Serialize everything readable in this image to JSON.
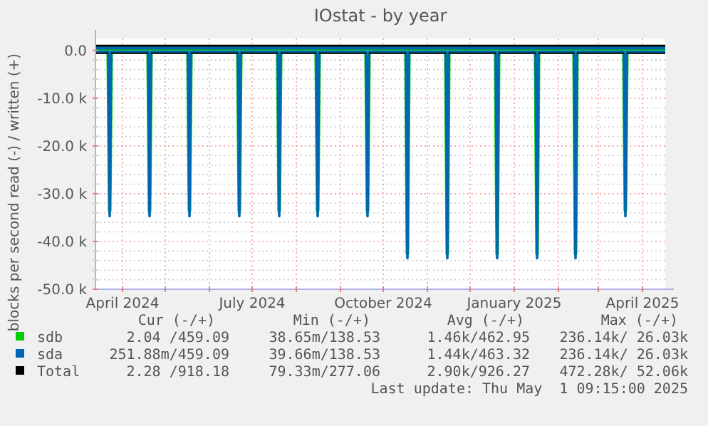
{
  "chart_data": {
    "type": "line",
    "title": "IOstat - by year",
    "ylabel": "blocks per second read (-) / written (+)",
    "x": [
      "2024-03-13",
      "2024-03-22",
      "2024-03-23",
      "2024-03-24",
      "2024-04-19",
      "2024-04-20",
      "2024-04-21",
      "2024-05-17",
      "2024-05-18",
      "2024-05-19",
      "2024-06-21",
      "2024-06-22",
      "2024-06-23",
      "2024-07-19",
      "2024-07-20",
      "2024-07-21",
      "2024-08-15",
      "2024-08-16",
      "2024-08-17",
      "2024-09-19",
      "2024-09-20",
      "2024-09-21",
      "2024-10-17",
      "2024-10-18",
      "2024-10-19",
      "2024-11-14",
      "2024-11-15",
      "2024-11-16",
      "2024-12-19",
      "2024-12-20",
      "2024-12-21",
      "2025-01-16",
      "2025-01-17",
      "2025-01-18",
      "2025-02-12",
      "2025-02-13",
      "2025-02-14",
      "2025-03-19",
      "2025-03-20",
      "2025-03-21",
      "2025-04-17"
    ],
    "series": [
      {
        "name": "sdb",
        "color": "#00cc00",
        "values": [
          500,
          500,
          500,
          500,
          500,
          500,
          500,
          500,
          500,
          500,
          500,
          500,
          500,
          500,
          500,
          500,
          500,
          500,
          500,
          500,
          500,
          500,
          500,
          500,
          500,
          500,
          500,
          500,
          500,
          500,
          500,
          500,
          500,
          500,
          500,
          500,
          500,
          500,
          500,
          500,
          500
        ]
      },
      {
        "color": "#00cc00",
        "values": [
          -300,
          -300,
          -33500,
          -300,
          -300,
          -33500,
          -300,
          -300,
          -33500,
          -300,
          -300,
          -33500,
          -300,
          -300,
          -33500,
          -300,
          -300,
          -33500,
          -300,
          -300,
          -33500,
          -300,
          -300,
          -42500,
          -300,
          -300,
          -42500,
          -300,
          -300,
          -42500,
          -300,
          -300,
          -42500,
          -300,
          -300,
          -42500,
          -300,
          -300,
          -33500,
          -300,
          -300
        ]
      },
      {
        "name": "sda",
        "color": "#0066b3",
        "values": [
          500,
          500,
          500,
          500,
          500,
          500,
          500,
          500,
          500,
          500,
          500,
          500,
          500,
          500,
          500,
          500,
          500,
          500,
          500,
          500,
          500,
          500,
          500,
          500,
          500,
          500,
          500,
          500,
          500,
          500,
          500,
          500,
          500,
          500,
          500,
          500,
          500,
          500,
          500,
          500,
          500
        ]
      },
      {
        "color": "#0066b3",
        "values": [
          -300,
          -300,
          -34700,
          -300,
          -300,
          -34700,
          -300,
          -300,
          -34700,
          -300,
          -300,
          -34700,
          -300,
          -300,
          -34700,
          -300,
          -300,
          -34700,
          -300,
          -300,
          -34700,
          -300,
          -300,
          -43500,
          -300,
          -300,
          -43500,
          -300,
          -300,
          -43500,
          -300,
          -300,
          -43500,
          -300,
          -300,
          -43500,
          -300,
          -300,
          -34700,
          -300,
          -300
        ]
      },
      {
        "name": "Total",
        "color": "#000000",
        "values": [
          1000,
          1000,
          1000,
          1000,
          1000,
          1000,
          1000,
          1000,
          1000,
          1000,
          1000,
          1000,
          1000,
          1000,
          1000,
          1000,
          1000,
          1000,
          1000,
          1000,
          1000,
          1000,
          1000,
          1000,
          1000,
          1000,
          1000,
          1000,
          1000,
          1000,
          1000,
          1000,
          1000,
          1000,
          1000,
          1000,
          1000,
          1000,
          1000,
          1000,
          1000
        ]
      },
      {
        "color": "#000000",
        "values": [
          -600,
          -600,
          null,
          -600,
          -600,
          null,
          -600,
          -600,
          null,
          -600,
          -600,
          null,
          -600,
          -600,
          null,
          -600,
          -600,
          null,
          -600,
          -600,
          null,
          -600,
          -600,
          null,
          -600,
          -600,
          null,
          -600,
          -600,
          null,
          -600,
          -600,
          null,
          -600,
          -600,
          null,
          -600,
          -600,
          null,
          -600,
          -600
        ]
      }
    ],
    "xlim": [
      "2024-03-13",
      "2025-04-17"
    ],
    "xticks": [
      {
        "value": "2024-04-01",
        "label": "April 2024"
      },
      {
        "value": "2024-05-01",
        "label": null
      },
      {
        "value": "2024-06-01",
        "label": null
      },
      {
        "value": "2024-07-01",
        "label": "July 2024"
      },
      {
        "value": "2024-08-01",
        "label": null
      },
      {
        "value": "2024-09-01",
        "label": null
      },
      {
        "value": "2024-10-01",
        "label": "October 2024"
      },
      {
        "value": "2024-11-01",
        "label": null
      },
      {
        "value": "2024-12-01",
        "label": null
      },
      {
        "value": "2025-01-01",
        "label": "January 2025"
      },
      {
        "value": "2025-02-01",
        "label": null
      },
      {
        "value": "2025-03-01",
        "label": null
      },
      {
        "value": "2025-04-01",
        "label": "April 2025"
      }
    ],
    "ylim": [
      -50000,
      2500
    ],
    "yticks": [
      {
        "value": 0,
        "label": "0.0"
      },
      {
        "value": -2000,
        "label": null
      },
      {
        "value": -4000,
        "label": null
      },
      {
        "value": -6000,
        "label": null
      },
      {
        "value": -8000,
        "label": null
      },
      {
        "value": -10000,
        "label": "-10.0 k"
      },
      {
        "value": -12000,
        "label": null
      },
      {
        "value": -14000,
        "label": null
      },
      {
        "value": -16000,
        "label": null
      },
      {
        "value": -18000,
        "label": null
      },
      {
        "value": -20000,
        "label": "-20.0 k"
      },
      {
        "value": -22000,
        "label": null
      },
      {
        "value": -24000,
        "label": null
      },
      {
        "value": -26000,
        "label": null
      },
      {
        "value": -28000,
        "label": null
      },
      {
        "value": -30000,
        "label": "-30.0 k"
      },
      {
        "value": -32000,
        "label": null
      },
      {
        "value": -34000,
        "label": null
      },
      {
        "value": -36000,
        "label": null
      },
      {
        "value": -38000,
        "label": null
      },
      {
        "value": -40000,
        "label": "-40.0 k"
      },
      {
        "value": -42000,
        "label": null
      },
      {
        "value": -44000,
        "label": null
      },
      {
        "value": -46000,
        "label": null
      },
      {
        "value": -48000,
        "label": null
      },
      {
        "value": -50000,
        "label": "-50.0 k"
      }
    ],
    "grid": true,
    "legend": "bottom",
    "marker": "none",
    "line_style": "solid",
    "annotations": [
      "Cur (-/+)",
      "Min (-/+)",
      "Avg (-/+)",
      "Max (-/+)",
      "2.04 /459.09",
      "38.65m/138.53",
      "1.46k/462.95",
      "236.14k/ 26.03k",
      "251.88m/459.09",
      "39.66m/138.53",
      "1.44k/463.32",
      "236.14k/ 26.03k",
      "2.28 /918.18",
      "79.33m/277.06",
      "2.90k/926.27",
      "472.28k/ 52.06k",
      "Last update: Thu May  1 09:15:00 2025"
    ]
  }
}
